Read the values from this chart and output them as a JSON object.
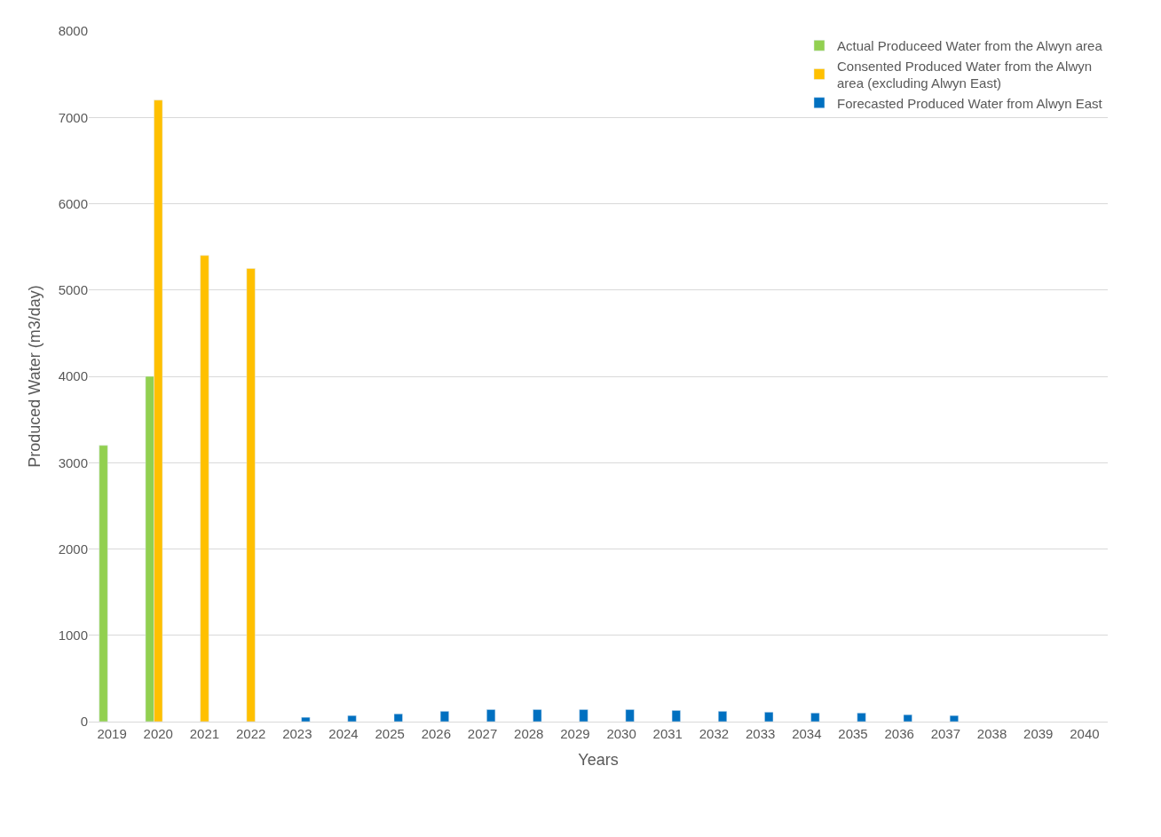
{
  "chart_data": {
    "type": "bar",
    "xlabel": "Years",
    "ylabel": "Produced Water (m3/day)",
    "categories": [
      "2019",
      "2020",
      "2021",
      "2022",
      "2023",
      "2024",
      "2025",
      "2026",
      "2027",
      "2028",
      "2029",
      "2030",
      "2031",
      "2032",
      "2033",
      "2034",
      "2035",
      "2036",
      "2037",
      "2038",
      "2039",
      "2040"
    ],
    "series": [
      {
        "name": "Actual Produceed Water from the Alwyn area",
        "color": "#92d050",
        "values": [
          3200,
          4000,
          null,
          null,
          null,
          null,
          null,
          null,
          null,
          null,
          null,
          null,
          null,
          null,
          null,
          null,
          null,
          null,
          null,
          null,
          null,
          null
        ]
      },
      {
        "name": "Consented Produced Water from the Alwyn\narea (excluding Alwyn East)",
        "color": "#ffc000",
        "values": [
          null,
          7200,
          5400,
          5250,
          null,
          null,
          null,
          null,
          null,
          null,
          null,
          null,
          null,
          null,
          null,
          null,
          null,
          null,
          null,
          null,
          null,
          null
        ]
      },
      {
        "name": "Forecasted Produced Water from Alwyn East",
        "color": "#0070c0",
        "values": [
          null,
          null,
          null,
          null,
          50,
          70,
          90,
          120,
          140,
          140,
          140,
          140,
          130,
          120,
          110,
          100,
          100,
          80,
          70,
          null,
          null,
          null
        ]
      }
    ],
    "ylim": [
      0,
      8000
    ],
    "yticks": [
      0,
      1000,
      2000,
      3000,
      4000,
      5000,
      6000,
      7000,
      8000
    ],
    "grid": "y",
    "legend": "top right"
  }
}
